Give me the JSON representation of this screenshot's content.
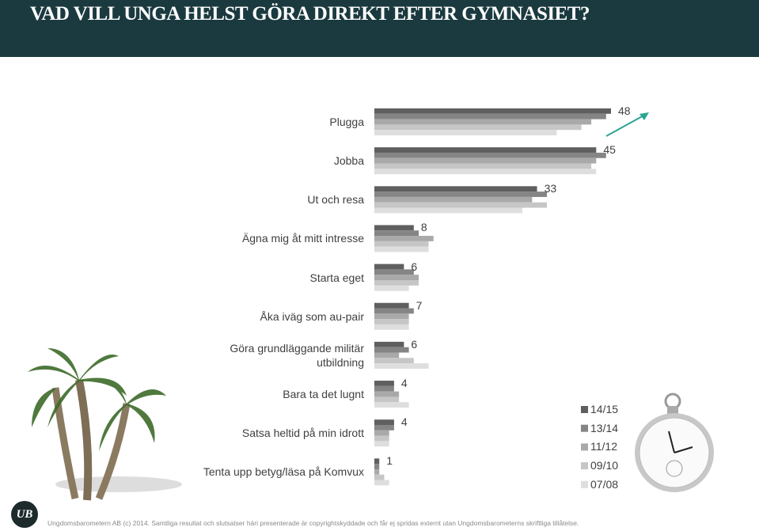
{
  "chart_data": {
    "type": "bar",
    "orientation": "horizontal",
    "title": "VAD VILL UNGA HELST GÖRA DIREKT EFTER GYMNASIET?",
    "categories": [
      "Plugga",
      "Jobba",
      "Ut och resa",
      "Ägna mig åt mitt intresse",
      "Starta eget",
      "Åka iväg som au-pair",
      "Göra grundläggande militär\nutbildning",
      "Bara ta det lugnt",
      "Satsa heltid på min idrott",
      "Tenta upp betyg/läsa på Komvux"
    ],
    "series": [
      {
        "name": "14/15",
        "color": "#5f5f5f",
        "show_values": true,
        "values": [
          48,
          45,
          33,
          8,
          6,
          7,
          6,
          4,
          4,
          1
        ]
      },
      {
        "name": "13/14",
        "color": "#858585",
        "values": [
          47,
          47,
          35,
          9,
          8,
          8,
          7,
          4,
          4,
          1
        ]
      },
      {
        "name": "11/12",
        "color": "#a9a9a9",
        "values": [
          44,
          45,
          32,
          12,
          9,
          7,
          5,
          5,
          3,
          1
        ]
      },
      {
        "name": "09/10",
        "color": "#c6c6c6",
        "values": [
          42,
          44,
          35,
          11,
          9,
          7,
          8,
          5,
          3,
          2
        ]
      },
      {
        "name": "07/08",
        "color": "#dedede",
        "values": [
          37,
          45,
          30,
          11,
          7,
          7,
          11,
          7,
          3,
          3
        ]
      }
    ],
    "legend": "lower-right"
  },
  "logo": "UB",
  "footer": "Ungdomsbarometern AB (c) 2014. Samtliga resultat och slutsatser häri presenterade är copyrightskyddade och får ej spridas externt utan Ungdomsbarometerns skriftliga tillåtelse."
}
